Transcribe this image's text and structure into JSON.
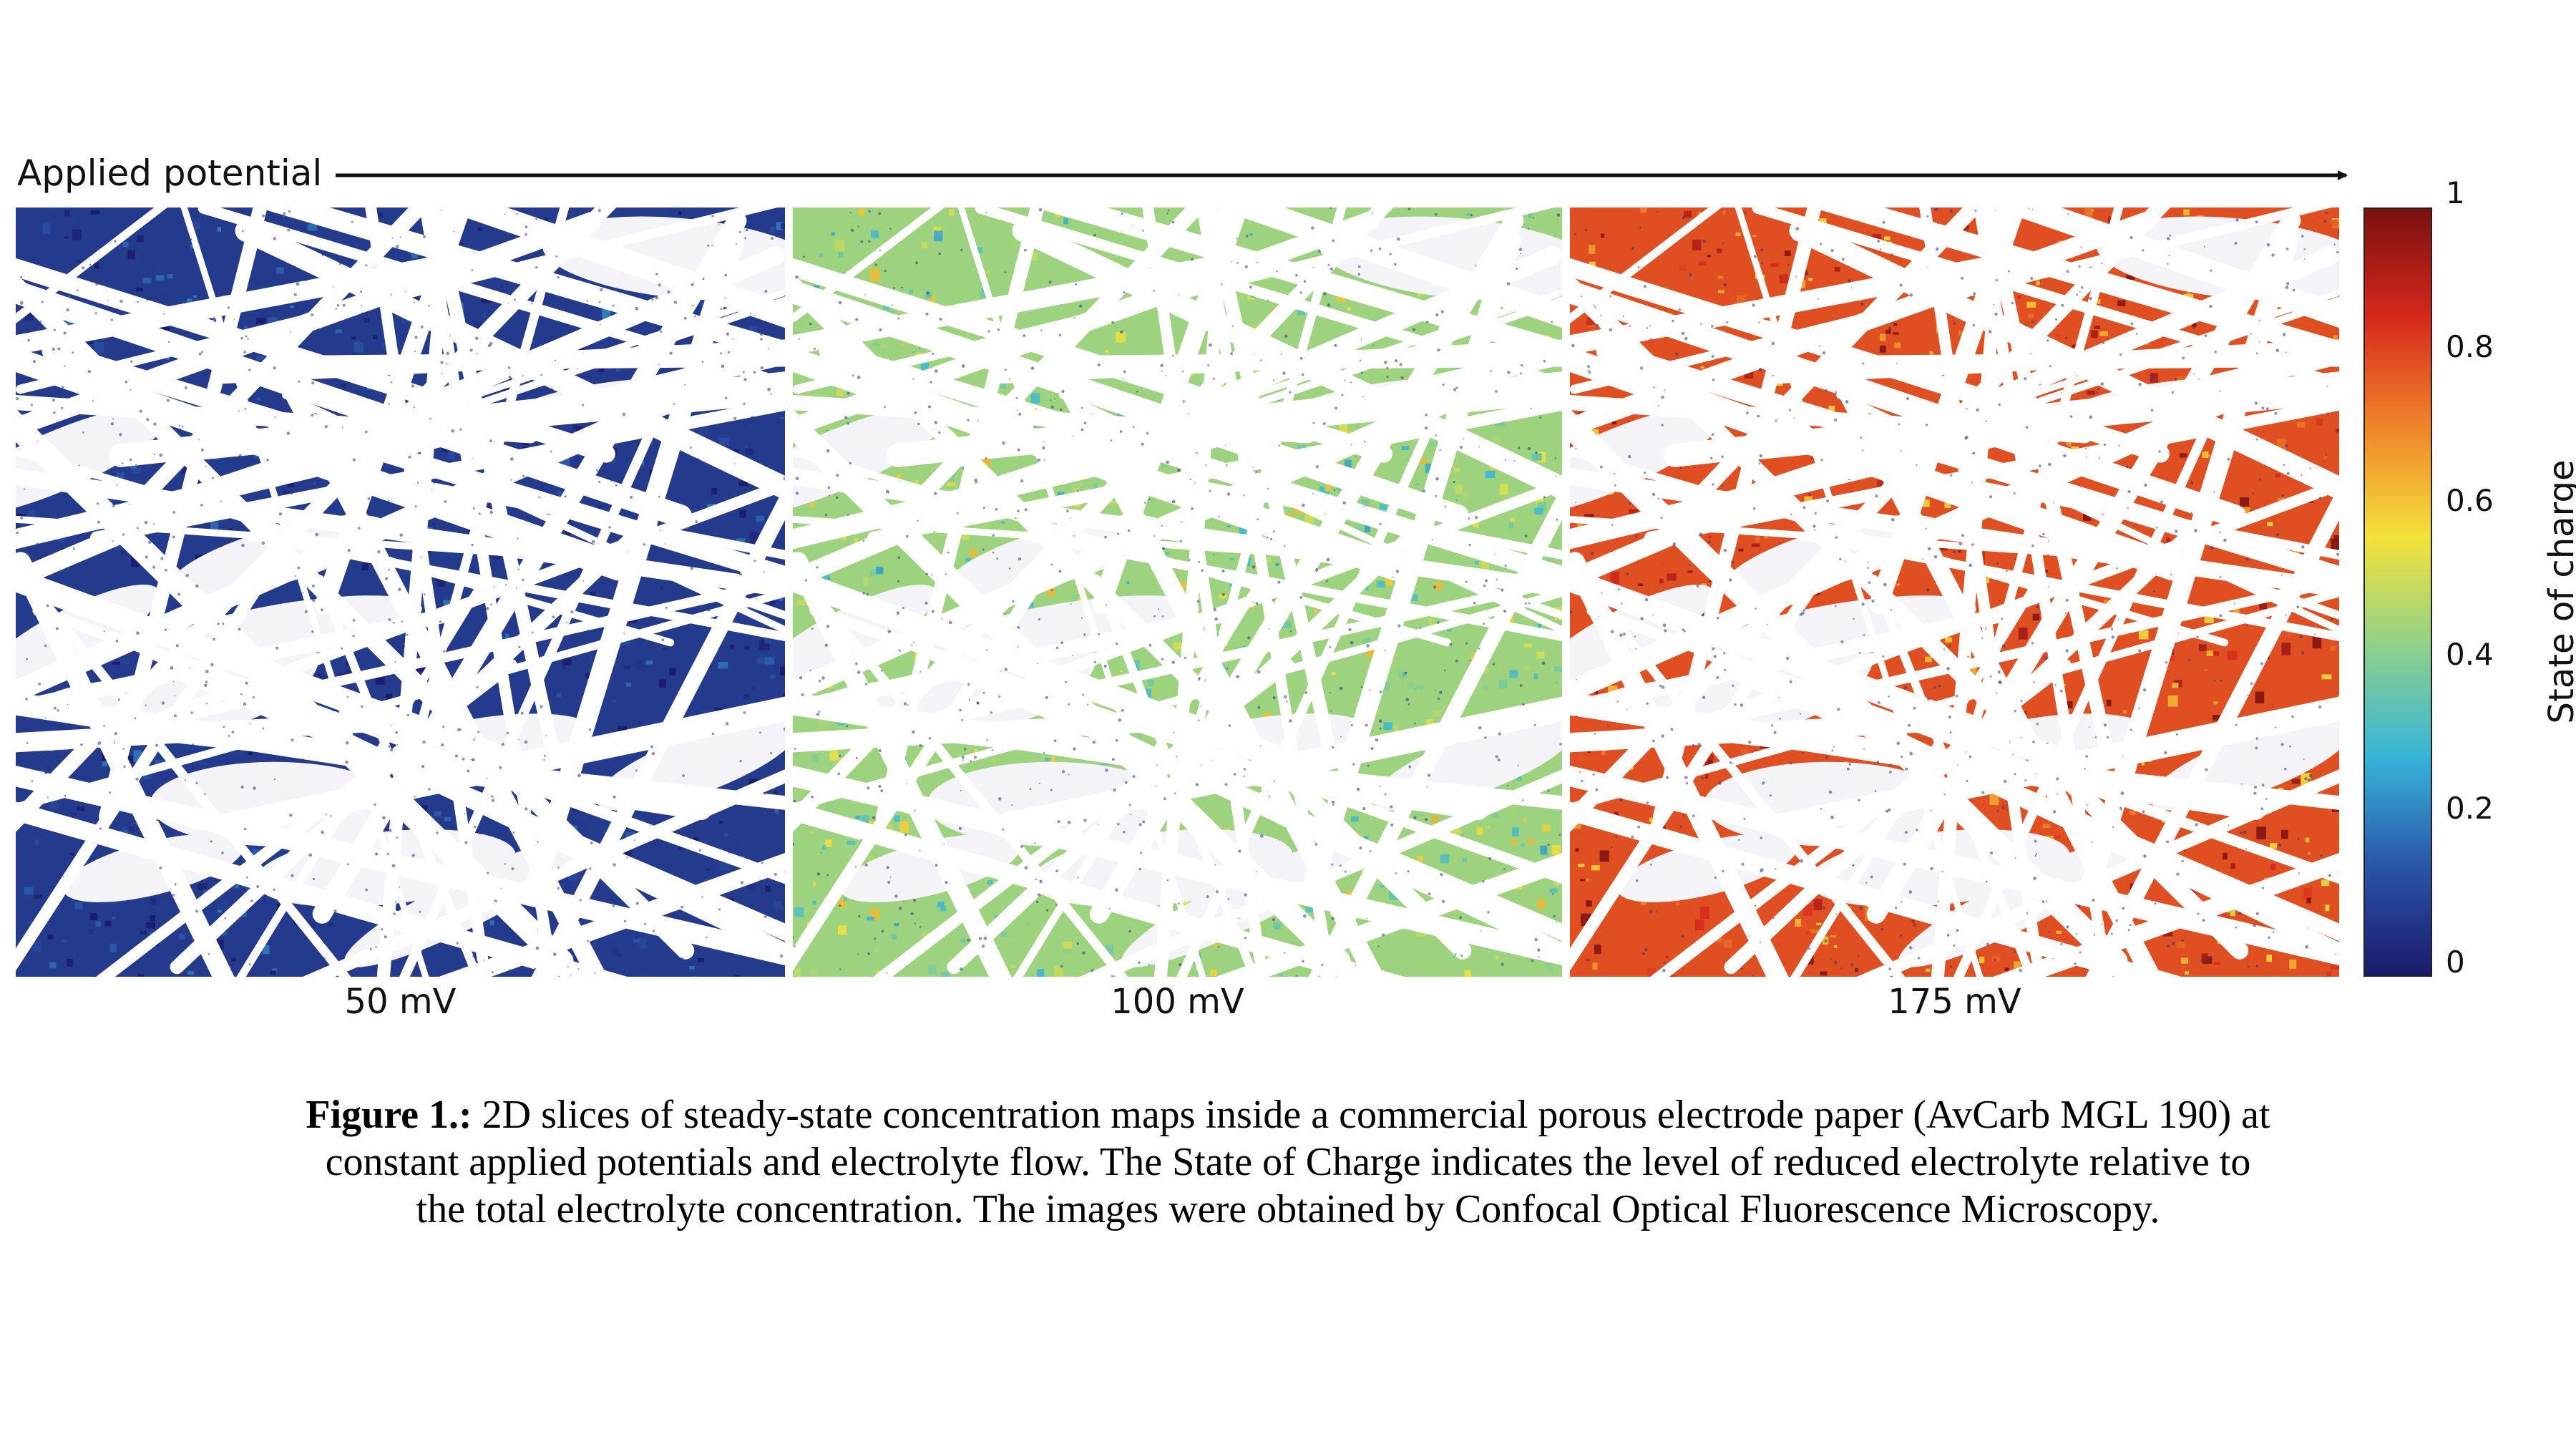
{
  "header": {
    "arrow_label": "Applied potential"
  },
  "panels": [
    {
      "label": "50 mV",
      "soc": 0.08
    },
    {
      "label": "100 mV",
      "soc": 0.45
    },
    {
      "label": "175 mV",
      "soc": 0.8
    }
  ],
  "colorbar": {
    "title": "State of charge",
    "ticks": [
      "1",
      "0.8",
      "0.6",
      "0.4",
      "0.2",
      "0"
    ],
    "tick_values": [
      1,
      0.8,
      0.6,
      0.4,
      0.2,
      0
    ],
    "colors": [
      "#1a1a6b",
      "#2b55a8",
      "#37b5d8",
      "#8ed08a",
      "#f4e23a",
      "#f0862a",
      "#d62a1c",
      "#7a1010"
    ]
  },
  "caption": {
    "bold": "Figure 1.:",
    "text": " 2D slices of steady-state concentration maps inside a commercial porous electrode paper (AvCarb MGL 190) at constant applied potentials and electrolyte flow. The State of Charge indicates the level of reduced electrolyte relative to the total electrolyte concentration. The images were obtained by Confocal Optical Fluorescence Microscopy."
  }
}
